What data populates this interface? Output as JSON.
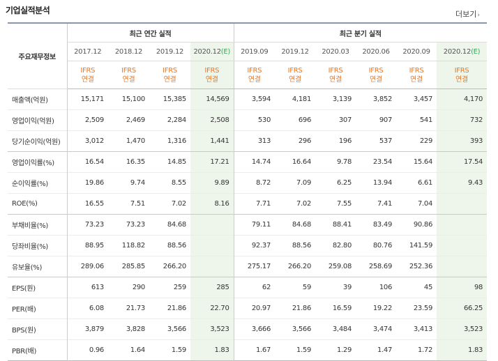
{
  "page": {
    "title": "기업실적분석",
    "more_label": "더보기",
    "more_arrow": "›"
  },
  "header": {
    "row_label": "주요재무정보",
    "annual_group": "최근 연간 실적",
    "quarter_group": "최근 분기 실적",
    "ifrs_line1": "IFRS",
    "ifrs_line2": "연결",
    "estimate_mark": "(E)",
    "periods": [
      "2017.12",
      "2018.12",
      "2019.12",
      "2020.12",
      "2019.09",
      "2019.12",
      "2020.03",
      "2020.06",
      "2020.09",
      "2020.12"
    ],
    "estimate_flags": [
      false,
      false,
      false,
      true,
      false,
      false,
      false,
      false,
      false,
      true
    ]
  },
  "rows": [
    {
      "label": "매출액(억원)",
      "values": [
        "15,171",
        "15,100",
        "15,385",
        "14,569",
        "3,594",
        "4,181",
        "3,139",
        "3,852",
        "3,457",
        "4,170"
      ]
    },
    {
      "label": "영업이익(억원)",
      "values": [
        "2,509",
        "2,469",
        "2,284",
        "2,508",
        "530",
        "696",
        "307",
        "907",
        "541",
        "732"
      ]
    },
    {
      "label": "당기순이익(억원)",
      "values": [
        "3,012",
        "1,470",
        "1,316",
        "1,441",
        "313",
        "296",
        "196",
        "537",
        "229",
        "393"
      ]
    },
    {
      "label": "영업이익률(%)",
      "values": [
        "16.54",
        "16.35",
        "14.85",
        "17.21",
        "14.74",
        "16.64",
        "9.78",
        "23.54",
        "15.64",
        "17.54"
      ]
    },
    {
      "label": "순이익률(%)",
      "values": [
        "19.86",
        "9.74",
        "8.55",
        "9.89",
        "8.72",
        "7.09",
        "6.25",
        "13.94",
        "6.61",
        "9.43"
      ]
    },
    {
      "label": "ROE(%)",
      "values": [
        "16.55",
        "7.51",
        "7.02",
        "8.16",
        "7.71",
        "7.02",
        "7.55",
        "7.41",
        "7.04",
        ""
      ]
    },
    {
      "label": "부채비율(%)",
      "values": [
        "73.23",
        "73.23",
        "84.68",
        "",
        "79.11",
        "84.68",
        "88.41",
        "83.49",
        "90.86",
        ""
      ]
    },
    {
      "label": "당좌비율(%)",
      "values": [
        "88.95",
        "118.82",
        "88.56",
        "",
        "92.37",
        "88.56",
        "82.80",
        "80.76",
        "141.59",
        ""
      ]
    },
    {
      "label": "유보율(%)",
      "values": [
        "289.06",
        "285.85",
        "266.20",
        "",
        "275.17",
        "266.20",
        "259.08",
        "258.69",
        "252.36",
        ""
      ]
    },
    {
      "label": "EPS(원)",
      "values": [
        "613",
        "290",
        "259",
        "285",
        "62",
        "59",
        "39",
        "106",
        "45",
        "98"
      ]
    },
    {
      "label": "PER(배)",
      "values": [
        "6.08",
        "21.73",
        "21.86",
        "22.70",
        "20.97",
        "21.86",
        "16.59",
        "19.22",
        "23.59",
        "66.25"
      ]
    },
    {
      "label": "BPS(원)",
      "values": [
        "3,879",
        "3,828",
        "3,566",
        "3,523",
        "3,666",
        "3,566",
        "3,484",
        "3,474",
        "3,413",
        "3,523"
      ]
    },
    {
      "label": "PBR(배)",
      "values": [
        "0.96",
        "1.64",
        "1.59",
        "1.83",
        "1.67",
        "1.59",
        "1.29",
        "1.47",
        "1.72",
        "1.83"
      ]
    }
  ],
  "group_end_rows": [
    2,
    5,
    8
  ]
}
